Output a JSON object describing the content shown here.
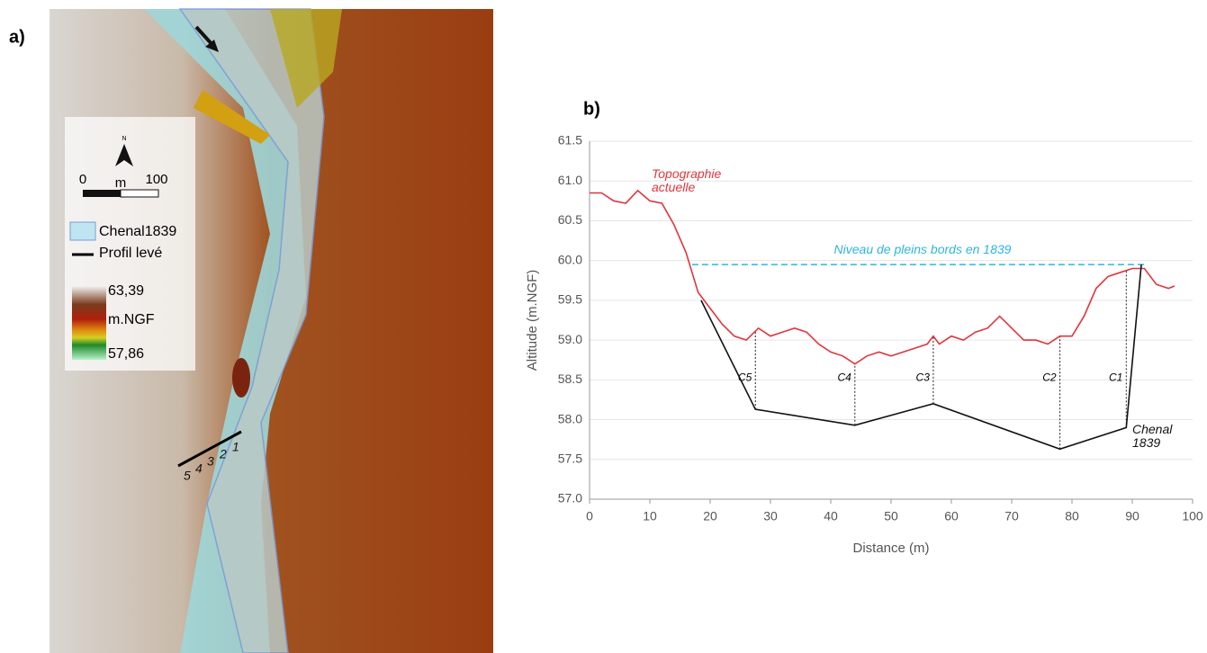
{
  "map": {
    "panel_label": "a)",
    "north": "N",
    "scale_labels": [
      "0",
      "m",
      "100"
    ],
    "legend": [
      "Chenal1839",
      "Profil levé"
    ],
    "elevation": {
      "max": "63,39",
      "unit": "m.NGF",
      "min": "57,86"
    },
    "profile_points": [
      "5",
      "4",
      "3",
      "2",
      "1"
    ]
  },
  "chart_data": {
    "type": "line",
    "panel_label": "b)",
    "x_label": "Distance (m)",
    "y_label": "Altitude (m.NGF)",
    "xlim": [
      0,
      100
    ],
    "ylim": [
      57,
      61.5
    ],
    "xticks": [
      0,
      10,
      20,
      30,
      40,
      50,
      60,
      70,
      80,
      90,
      100
    ],
    "yticks": [
      {
        "value": 57,
        "label": "57.0"
      },
      57.5,
      {
        "value": 58,
        "label": "58.0"
      },
      58.5,
      {
        "value": 59,
        "label": "59.0"
      },
      59.5,
      {
        "value": 60,
        "label": "60.0"
      },
      60.5,
      {
        "value": 61,
        "label": "61.0"
      },
      61.5
    ],
    "grid": true,
    "series": [
      {
        "name": "Topographie actuelle",
        "color": "#e0353d",
        "x": [
          0,
          2,
          4,
          6,
          8,
          10,
          12,
          14,
          16,
          18,
          20,
          22,
          24,
          26,
          28,
          30,
          32,
          34,
          36,
          38,
          40,
          42,
          44,
          46,
          48,
          50,
          52,
          54,
          56,
          57,
          58,
          60,
          62,
          64,
          66,
          68,
          70,
          72,
          74,
          76,
          78,
          80,
          82,
          84,
          86,
          88,
          90,
          92,
          94,
          96,
          97
        ],
        "values": [
          60.85,
          60.85,
          60.75,
          60.72,
          60.88,
          60.75,
          60.72,
          60.45,
          60.1,
          59.6,
          59.4,
          59.2,
          59.05,
          59.0,
          59.15,
          59.05,
          59.1,
          59.15,
          59.1,
          58.95,
          58.85,
          58.8,
          58.7,
          58.8,
          58.85,
          58.8,
          58.85,
          58.9,
          58.95,
          59.05,
          58.95,
          59.05,
          59.0,
          59.1,
          59.15,
          59.3,
          59.15,
          59.0,
          59.0,
          58.95,
          59.05,
          59.05,
          59.3,
          59.65,
          59.8,
          59.85,
          59.9,
          59.9,
          59.7,
          59.65,
          59.68
        ]
      },
      {
        "name": "Chenal 1839",
        "color": "#111111",
        "x": [
          18.5,
          27.5,
          44,
          57,
          78,
          89,
          91.5
        ],
        "values": [
          59.5,
          58.13,
          57.93,
          58.2,
          57.63,
          57.9,
          59.95
        ]
      }
    ],
    "sections": [
      "C5",
      "C4",
      "C3",
      "C2",
      "C1"
    ],
    "reference_line": {
      "label": "Niveau de pleins bords en 1839",
      "y": 59.95,
      "x": [
        17,
        92
      ],
      "color": "#2fb4e0"
    }
  }
}
